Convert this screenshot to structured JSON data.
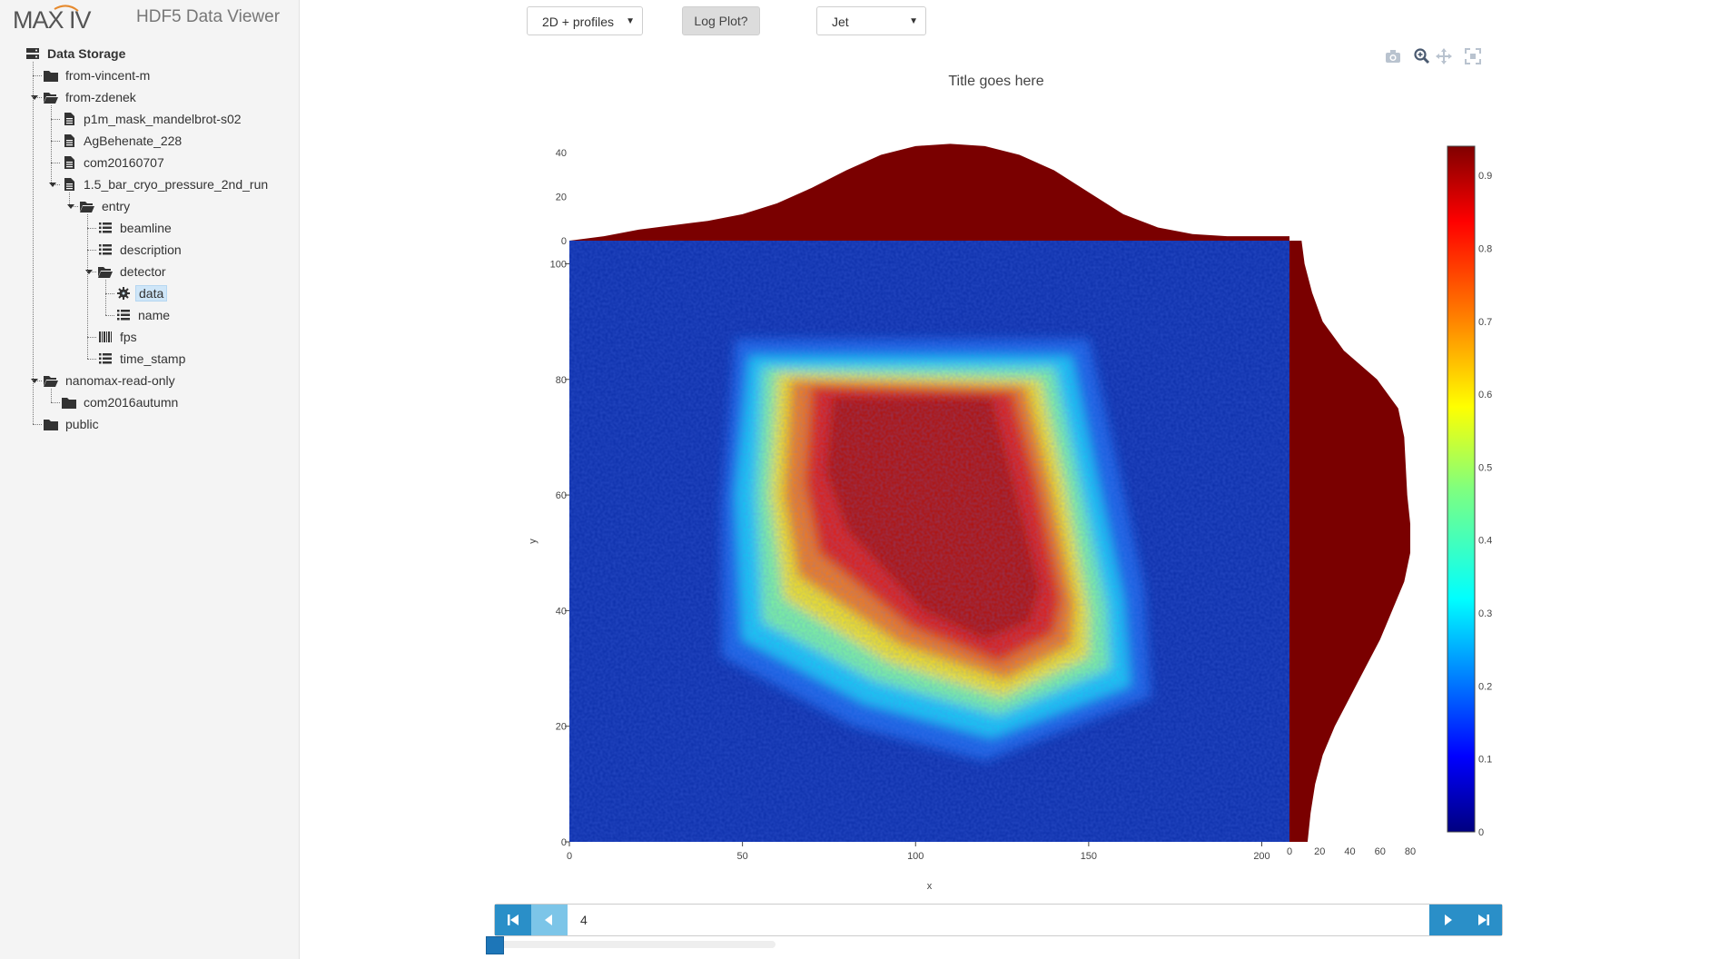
{
  "app": {
    "logo_text": "MAX IV",
    "title": "HDF5 Data Viewer"
  },
  "tree": [
    {
      "label": "Data Storage",
      "icon": "database-icon",
      "depth": 0,
      "root": true
    },
    {
      "label": "from-vincent-m",
      "icon": "folder-icon",
      "depth": 1
    },
    {
      "label": "from-zdenek",
      "icon": "folder-open-icon",
      "depth": 1,
      "expanded": true
    },
    {
      "label": "p1m_mask_mandelbrot-s02",
      "icon": "file-icon",
      "depth": 2
    },
    {
      "label": "AgBehenate_228",
      "icon": "file-icon",
      "depth": 2
    },
    {
      "label": "com20160707",
      "icon": "file-icon",
      "depth": 2
    },
    {
      "label": "1.5_bar_cryo_pressure_2nd_run",
      "icon": "file-icon",
      "depth": 2,
      "expanded": true
    },
    {
      "label": "entry",
      "icon": "folder-open-icon",
      "depth": 3,
      "expanded": true
    },
    {
      "label": "beamline",
      "icon": "list-icon",
      "depth": 4
    },
    {
      "label": "description",
      "icon": "list-icon",
      "depth": 4
    },
    {
      "label": "detector",
      "icon": "folder-open-icon",
      "depth": 4,
      "expanded": true
    },
    {
      "label": "data",
      "icon": "gear-icon",
      "depth": 5,
      "selected": true
    },
    {
      "label": "name",
      "icon": "list-icon",
      "depth": 5
    },
    {
      "label": "fps",
      "icon": "barcode-icon",
      "depth": 4
    },
    {
      "label": "time_stamp",
      "icon": "list-icon",
      "depth": 4
    },
    {
      "label": "nanomax-read-only",
      "icon": "folder-open-icon",
      "depth": 1,
      "expanded": true
    },
    {
      "label": "com2016autumn",
      "icon": "folder-icon",
      "depth": 2
    },
    {
      "label": "public",
      "icon": "folder-icon",
      "depth": 1
    }
  ],
  "toolbar": {
    "plot_mode": "2D + profiles",
    "log_plot_label": "Log Plot?",
    "colormap": "Jet"
  },
  "modebar": [
    "camera-icon",
    "zoom-icon",
    "pan-icon",
    "autoscale-icon"
  ],
  "navigation": {
    "first_icon": "first-page-icon",
    "prev_icon": "prev-icon",
    "next_icon": "next-icon",
    "last_icon": "last-page-icon",
    "value": "4"
  },
  "colors": {
    "accent": "#2a8fc8",
    "profile": "#7a0000"
  },
  "chart_data": {
    "type": "heatmap",
    "title": "Title goes here",
    "xlabel": "x",
    "ylabel": "y",
    "xlim": [
      0,
      208
    ],
    "ylim": [
      0,
      104
    ],
    "x_ticks": [
      0,
      50,
      100,
      150,
      200
    ],
    "y_ticks": [
      0,
      20,
      40,
      60,
      80,
      100
    ],
    "colorscale": "Jet",
    "colorbar": {
      "range": [
        0,
        0.94
      ],
      "ticks": [
        0,
        0.1,
        0.2,
        0.3,
        0.4,
        0.5,
        0.6,
        0.7,
        0.8,
        0.9
      ]
    },
    "top_profile": {
      "y_ticks": [
        0,
        20,
        40
      ],
      "x": [
        0,
        10,
        20,
        30,
        40,
        50,
        60,
        70,
        80,
        90,
        100,
        110,
        120,
        130,
        140,
        150,
        160,
        170,
        180,
        190,
        200,
        208
      ],
      "values": [
        0,
        2,
        5,
        7,
        9,
        12,
        17,
        24,
        32,
        39,
        43,
        44,
        43,
        39,
        32,
        22,
        12,
        6,
        3,
        2,
        2,
        2
      ]
    },
    "right_profile": {
      "x_ticks": [
        0,
        20,
        40,
        60,
        80
      ],
      "y": [
        0,
        5,
        10,
        15,
        20,
        25,
        30,
        35,
        40,
        45,
        50,
        55,
        60,
        65,
        70,
        75,
        80,
        85,
        90,
        95,
        100,
        104
      ],
      "values": [
        12,
        14,
        17,
        22,
        30,
        40,
        50,
        60,
        68,
        76,
        80,
        80,
        78,
        77,
        76,
        72,
        58,
        36,
        22,
        15,
        10,
        8
      ]
    }
  }
}
